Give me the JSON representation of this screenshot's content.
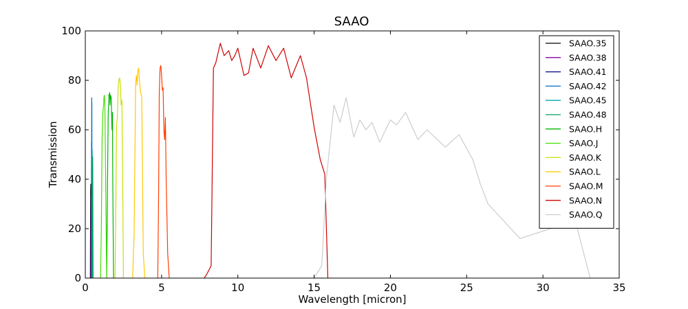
{
  "chart_data": {
    "type": "line",
    "title": "SAAO",
    "xlabel": "Wavelength [micron]",
    "ylabel": "Transmission",
    "xlim": [
      0,
      35
    ],
    "ylim": [
      0,
      100
    ],
    "xticks": [
      0,
      5,
      10,
      15,
      20,
      25,
      30,
      35
    ],
    "yticks": [
      0,
      20,
      40,
      60,
      80,
      100
    ],
    "grid": false,
    "legend_position": "top-right",
    "series": [
      {
        "name": "SAAO.35",
        "color": "#000000",
        "x": [
          0.33,
          0.34,
          0.35,
          0.36,
          0.37,
          0.38
        ],
        "y": [
          0,
          20,
          35,
          38,
          15,
          0
        ]
      },
      {
        "name": "SAAO.38",
        "color": "#8000a0",
        "x": [
          0.36,
          0.37,
          0.38,
          0.39,
          0.4,
          0.41
        ],
        "y": [
          0,
          18,
          33,
          30,
          10,
          0
        ]
      },
      {
        "name": "SAAO.41",
        "color": "#00008b",
        "x": [
          0.39,
          0.4,
          0.41,
          0.42,
          0.43,
          0.44
        ],
        "y": [
          0,
          30,
          55,
          50,
          20,
          0
        ]
      },
      {
        "name": "SAAO.42",
        "color": "#0070c0",
        "x": [
          0.4,
          0.41,
          0.42,
          0.43,
          0.44,
          0.45
        ],
        "y": [
          0,
          40,
          73,
          70,
          30,
          0
        ]
      },
      {
        "name": "SAAO.45",
        "color": "#00a8a8",
        "x": [
          0.43,
          0.44,
          0.45,
          0.46,
          0.47,
          0.48
        ],
        "y": [
          0,
          30,
          52,
          48,
          20,
          0
        ]
      },
      {
        "name": "SAAO.48",
        "color": "#00a060",
        "x": [
          0.46,
          0.47,
          0.48,
          0.49,
          0.5,
          0.51
        ],
        "y": [
          0,
          28,
          49,
          45,
          18,
          0
        ]
      },
      {
        "name": "SAAO.H",
        "color": "#00b400",
        "x": [
          1.4,
          1.45,
          1.5,
          1.55,
          1.6,
          1.62,
          1.65,
          1.7,
          1.75,
          1.78,
          1.8,
          1.85
        ],
        "y": [
          0,
          35,
          66,
          74,
          75,
          70,
          74,
          73,
          60,
          67,
          40,
          0
        ]
      },
      {
        "name": "SAAO.J",
        "color": "#44dd00",
        "x": [
          1.0,
          1.05,
          1.1,
          1.15,
          1.2,
          1.22,
          1.25,
          1.28,
          1.3,
          1.35,
          1.4
        ],
        "y": [
          0,
          20,
          56,
          67,
          70,
          73,
          74,
          71,
          60,
          30,
          0
        ]
      },
      {
        "name": "SAAO.K",
        "color": "#c8e000",
        "x": [
          1.95,
          2.0,
          2.05,
          2.1,
          2.15,
          2.2,
          2.25,
          2.3,
          2.35,
          2.4,
          2.45,
          2.5
        ],
        "y": [
          0,
          28,
          62,
          65,
          77,
          80,
          81,
          78,
          70,
          72,
          40,
          0
        ]
      },
      {
        "name": "SAAO.L",
        "color": "#ffc800",
        "x": [
          3.1,
          3.2,
          3.3,
          3.35,
          3.4,
          3.45,
          3.5,
          3.55,
          3.6,
          3.7,
          3.8,
          3.9
        ],
        "y": [
          0,
          18,
          79,
          82,
          78,
          84,
          85,
          80,
          76,
          73,
          10,
          0
        ]
      },
      {
        "name": "SAAO.M",
        "color": "#ff3c00",
        "x": [
          4.75,
          4.8,
          4.85,
          4.9,
          4.95,
          5.0,
          5.05,
          5.1,
          5.15,
          5.2,
          5.25,
          5.3,
          5.4,
          5.5
        ],
        "y": [
          0,
          30,
          75,
          85,
          86,
          82,
          76,
          77,
          60,
          56,
          65,
          40,
          10,
          0
        ]
      },
      {
        "name": "SAAO.N",
        "color": "#cc0000",
        "x": [
          7.8,
          8.0,
          8.25,
          8.4,
          8.55,
          8.85,
          9.1,
          9.4,
          9.6,
          9.8,
          10.0,
          10.4,
          10.7,
          11.0,
          11.5,
          12.0,
          12.5,
          13.0,
          13.5,
          14.1,
          14.5,
          15.0,
          15.4,
          15.7,
          15.9
        ],
        "y": [
          0,
          2,
          5,
          85,
          87,
          95,
          90,
          92,
          88,
          90,
          93,
          82,
          83,
          93,
          85,
          94,
          88,
          93,
          81,
          90,
          81,
          61,
          48,
          42,
          0
        ]
      },
      {
        "name": "SAAO.Q",
        "color": "#cccccc",
        "x": [
          15.0,
          15.5,
          15.8,
          16.3,
          16.7,
          17.1,
          17.6,
          18.0,
          18.4,
          18.8,
          19.3,
          20.0,
          20.4,
          21.0,
          21.8,
          22.4,
          23.6,
          24.5,
          25.4,
          25.9,
          26.4,
          28.5,
          30.5,
          31.5,
          32.0,
          33.1
        ],
        "y": [
          0,
          5,
          40,
          70,
          63,
          73,
          57,
          64,
          60,
          63,
          55,
          64,
          62,
          67,
          56,
          60,
          53,
          58,
          48,
          38,
          30,
          16,
          20,
          28,
          26,
          0
        ]
      }
    ]
  }
}
